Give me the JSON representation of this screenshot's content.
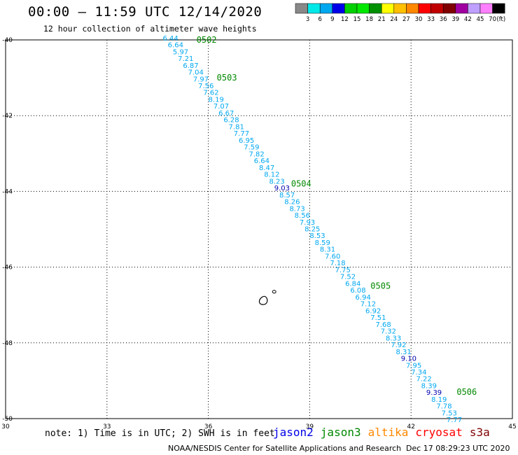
{
  "title": "00:00 – 11:59 UTC 12/14/2020",
  "subtitle": "12 hour collection of altimeter wave heights",
  "color_scale": {
    "unit": "(ft)",
    "labels": [
      "3",
      "6",
      "9",
      "12",
      "15",
      "18",
      "21",
      "24",
      "27",
      "30",
      "33",
      "36",
      "39",
      "42",
      "45",
      "70"
    ],
    "colors": [
      "#888888",
      "#00e8e8",
      "#00a8f0",
      "#0000e8",
      "#00d000",
      "#00e800",
      "#009000",
      "#ffff00",
      "#ffc000",
      "#ff8800",
      "#ff0000",
      "#c00000",
      "#800000",
      "#a000a0",
      "#c0a0ff",
      "#ff80ff",
      "#000000"
    ]
  },
  "note": "note: 1) Time is in UTC; 2) SWH is in feet",
  "satellites": [
    {
      "name": "jason2",
      "color": "#0000e8"
    },
    {
      "name": "jason3",
      "color": "#008800"
    },
    {
      "name": "altika",
      "color": "#ff8800"
    },
    {
      "name": "cryosat",
      "color": "#ff0000"
    },
    {
      "name": "s3a",
      "color": "#800000"
    }
  ],
  "credit": "NOAA/NESDIS Center for Satellite Applications and Research",
  "generated": "Dec 17 08:29:23 UTC 2020",
  "axes": {
    "lon_range": [
      30,
      45
    ],
    "lat_range": [
      -40,
      -50
    ],
    "lon_ticks": [
      30,
      33,
      36,
      39,
      42,
      45
    ],
    "lat_ticks": [
      -40,
      -42,
      -44,
      -46,
      -48,
      -50
    ],
    "lon_labels": [
      "30",
      "33",
      "36",
      "39",
      "42",
      "45"
    ],
    "lat_labels": [
      "-40",
      "-42",
      "-44",
      "-46",
      "-48",
      "-50"
    ]
  },
  "track_color": "#00a8f0",
  "track_dark_color": "#0000b0",
  "time_color": "#008800",
  "time_labels": [
    {
      "text": "0502",
      "lon": 35.65,
      "lat": -40.0
    },
    {
      "text": "0503",
      "lon": 36.25,
      "lat": -41.0
    },
    {
      "text": "0504",
      "lon": 38.45,
      "lat": -43.8
    },
    {
      "text": "0505",
      "lon": 40.8,
      "lat": -46.5
    },
    {
      "text": "0506",
      "lon": 43.35,
      "lat": -49.3
    }
  ],
  "track": [
    {
      "v": "6.44",
      "lon": 34.65,
      "lat": -39.96
    },
    {
      "v": "6.64",
      "lon": 34.8,
      "lat": -40.14
    },
    {
      "v": "5.97",
      "lon": 34.95,
      "lat": -40.32
    },
    {
      "v": "7.21",
      "lon": 35.1,
      "lat": -40.5
    },
    {
      "v": "6.87",
      "lon": 35.25,
      "lat": -40.68
    },
    {
      "v": "7.04",
      "lon": 35.4,
      "lat": -40.86
    },
    {
      "v": "7.97",
      "lon": 35.55,
      "lat": -41.04
    },
    {
      "v": "7.56",
      "lon": 35.7,
      "lat": -41.22
    },
    {
      "v": "7.62",
      "lon": 35.85,
      "lat": -41.4
    },
    {
      "v": "8.19",
      "lon": 36.0,
      "lat": -41.58
    },
    {
      "v": "7.07",
      "lon": 36.15,
      "lat": -41.76
    },
    {
      "v": "6.67",
      "lon": 36.3,
      "lat": -41.94
    },
    {
      "v": "6.28",
      "lon": 36.45,
      "lat": -42.12
    },
    {
      "v": "7.81",
      "lon": 36.6,
      "lat": -42.3
    },
    {
      "v": "7.77",
      "lon": 36.75,
      "lat": -42.48
    },
    {
      "v": "6.95",
      "lon": 36.9,
      "lat": -42.66
    },
    {
      "v": "7.59",
      "lon": 37.05,
      "lat": -42.84
    },
    {
      "v": "7.82",
      "lon": 37.2,
      "lat": -43.02
    },
    {
      "v": "6.64",
      "lon": 37.35,
      "lat": -43.2
    },
    {
      "v": "8.47",
      "lon": 37.5,
      "lat": -43.38
    },
    {
      "v": "8.12",
      "lon": 37.65,
      "lat": -43.56
    },
    {
      "v": "8.23",
      "lon": 37.8,
      "lat": -43.74
    },
    {
      "v": "9.03",
      "lon": 37.95,
      "lat": -43.92,
      "dark": true
    },
    {
      "v": "8.57",
      "lon": 38.1,
      "lat": -44.1
    },
    {
      "v": "8.26",
      "lon": 38.25,
      "lat": -44.28
    },
    {
      "v": "8.73",
      "lon": 38.4,
      "lat": -44.46
    },
    {
      "v": "8.56",
      "lon": 38.55,
      "lat": -44.64
    },
    {
      "v": "7.93",
      "lon": 38.7,
      "lat": -44.82
    },
    {
      "v": "8.25",
      "lon": 38.85,
      "lat": -45.0
    },
    {
      "v": "8.53",
      "lon": 39.0,
      "lat": -45.18
    },
    {
      "v": "8.59",
      "lon": 39.15,
      "lat": -45.36
    },
    {
      "v": "8.31",
      "lon": 39.3,
      "lat": -45.54
    },
    {
      "v": "7.60",
      "lon": 39.45,
      "lat": -45.72
    },
    {
      "v": "7.18",
      "lon": 39.6,
      "lat": -45.9
    },
    {
      "v": "7.75",
      "lon": 39.75,
      "lat": -46.08
    },
    {
      "v": "7.52",
      "lon": 39.9,
      "lat": -46.26
    },
    {
      "v": "6.84",
      "lon": 40.05,
      "lat": -46.44
    },
    {
      "v": "6.08",
      "lon": 40.2,
      "lat": -46.62
    },
    {
      "v": "6.94",
      "lon": 40.35,
      "lat": -46.8
    },
    {
      "v": "7.12",
      "lon": 40.5,
      "lat": -46.98
    },
    {
      "v": "6.92",
      "lon": 40.65,
      "lat": -47.16
    },
    {
      "v": "7.51",
      "lon": 40.8,
      "lat": -47.34
    },
    {
      "v": "7.68",
      "lon": 40.95,
      "lat": -47.52
    },
    {
      "v": "7.32",
      "lon": 41.1,
      "lat": -47.7
    },
    {
      "v": "8.33",
      "lon": 41.25,
      "lat": -47.88
    },
    {
      "v": "7.92",
      "lon": 41.4,
      "lat": -48.06
    },
    {
      "v": "8.31",
      "lon": 41.55,
      "lat": -48.24
    },
    {
      "v": "9.10",
      "lon": 41.7,
      "lat": -48.42,
      "dark": true
    },
    {
      "v": "7.95",
      "lon": 41.85,
      "lat": -48.6
    },
    {
      "v": "7.34",
      "lon": 42.0,
      "lat": -48.78
    },
    {
      "v": "7.22",
      "lon": 42.15,
      "lat": -48.96
    },
    {
      "v": "8.39",
      "lon": 42.3,
      "lat": -49.14
    },
    {
      "v": "9.39",
      "lon": 42.45,
      "lat": -49.32,
      "dark": true
    },
    {
      "v": "8.19",
      "lon": 42.6,
      "lat": -49.5
    },
    {
      "v": "7.78",
      "lon": 42.75,
      "lat": -49.68
    },
    {
      "v": "7.53",
      "lon": 42.9,
      "lat": -49.86
    },
    {
      "v": "7.77",
      "lon": 43.05,
      "lat": -50.04
    }
  ],
  "islands": [
    {
      "name": "prince-edward-island",
      "lon": 37.65,
      "lat": -46.9
    },
    {
      "name": "marion-island",
      "lon": 37.95,
      "lat": -46.65
    }
  ]
}
